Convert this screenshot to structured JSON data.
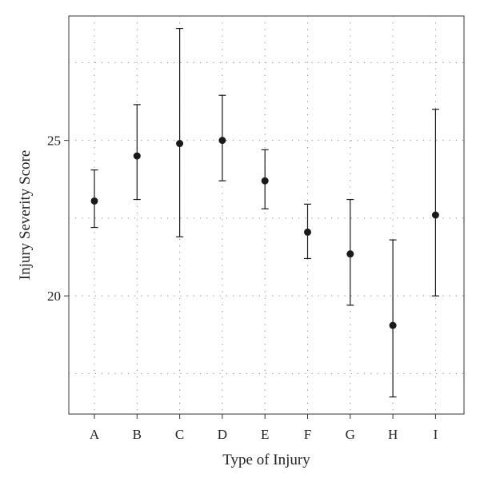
{
  "chart_data": {
    "type": "scatter",
    "xlabel": "Type of Injury",
    "ylabel": "Injury Severity Score",
    "categories": [
      "A",
      "B",
      "C",
      "D",
      "E",
      "F",
      "G",
      "H",
      "I"
    ],
    "series": [
      {
        "values": [
          23.05,
          24.5,
          24.9,
          25.0,
          23.7,
          22.05,
          21.35,
          19.05,
          22.6
        ],
        "lower": [
          22.2,
          23.1,
          21.9,
          23.7,
          22.8,
          21.2,
          19.7,
          16.75,
          20.0
        ],
        "upper": [
          24.05,
          26.15,
          28.6,
          26.45,
          24.7,
          22.95,
          23.1,
          21.8,
          26.0
        ]
      }
    ],
    "yticks": [
      20,
      25
    ],
    "ylim": [
      16.2,
      29.0
    ],
    "grid": true,
    "colors": {
      "marker": "#1a1a1a",
      "grid": "#888888",
      "axis": "#333333"
    }
  }
}
